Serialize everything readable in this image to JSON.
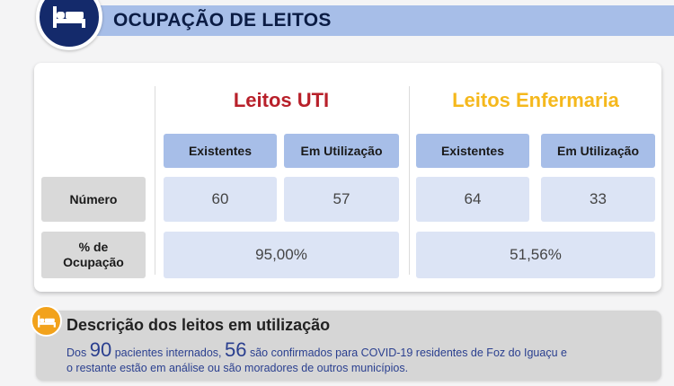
{
  "header": {
    "title": "OCUPAÇÃO DE LEITOS",
    "icon": "bed-icon"
  },
  "colors": {
    "uti": "#b8202a",
    "enfermaria": "#f5b81c",
    "header_bar": "#a7bee8",
    "badge": "#142a6b",
    "cell": "#dce4f5",
    "row_header": "#d9d9d9",
    "desc_badge": "#f2a21b",
    "desc_text": "#2a3f8f"
  },
  "table": {
    "groups": [
      {
        "title": "Leitos UTI",
        "columns": [
          "Existentes",
          "Em Utilização"
        ],
        "numero": [
          "60",
          "57"
        ],
        "ocupacao": "95,00%"
      },
      {
        "title": "Leitos Enfermaria",
        "columns": [
          "Existentes",
          "Em Utilização"
        ],
        "numero": [
          "64",
          "33"
        ],
        "ocupacao": "51,56%"
      }
    ],
    "row_labels": {
      "numero": "Número",
      "ocupacao_line1": "% de",
      "ocupacao_line2": "Ocupação"
    }
  },
  "description": {
    "icon": "bed-icon",
    "title": "Descrição dos leitos em utilização",
    "line1_pre": "Dos",
    "internados": "90",
    "line1_mid": "pacientes internados,",
    "confirmados": "56",
    "line1_post": "são confirmados para COVID-19 residentes de Foz do Iguaçu e",
    "line2": "o restante estão em análise ou são moradores de outros municípios."
  }
}
